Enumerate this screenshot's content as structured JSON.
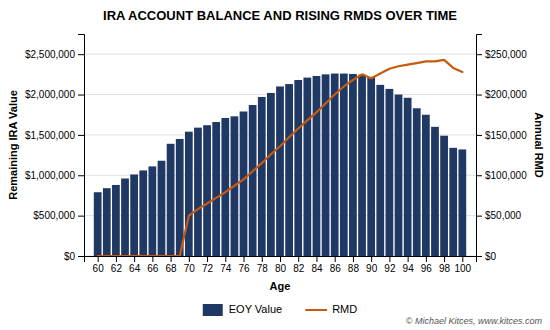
{
  "chart_data": {
    "type": "bar",
    "title": "IRA ACCOUNT BALANCE AND RISING RMDS OVER TIME",
    "x_label": "Age",
    "y_label": "Remaining IRA Value",
    "y2_label": "Annual RMD",
    "x": [
      60,
      61,
      62,
      63,
      64,
      65,
      66,
      67,
      68,
      69,
      70,
      71,
      72,
      73,
      74,
      75,
      76,
      77,
      78,
      79,
      80,
      81,
      82,
      83,
      84,
      85,
      86,
      87,
      88,
      89,
      90,
      91,
      92,
      93,
      94,
      95,
      96,
      97,
      98,
      99,
      100
    ],
    "series": [
      {
        "name": "EOY Value",
        "type": "bar",
        "color": "#1f3864",
        "values": [
          790000,
          840000,
          880000,
          960000,
          1010000,
          1060000,
          1110000,
          1180000,
          1390000,
          1450000,
          1540000,
          1590000,
          1620000,
          1660000,
          1710000,
          1730000,
          1790000,
          1870000,
          1970000,
          2020000,
          2100000,
          2130000,
          2180000,
          2210000,
          2230000,
          2250000,
          2260000,
          2260000,
          2255000,
          2245000,
          2220000,
          2120000,
          2070000,
          2000000,
          1960000,
          1830000,
          1750000,
          1600000,
          1490000,
          1340000,
          1320000
        ]
      },
      {
        "name": "RMD",
        "type": "line",
        "color": "#c55a11",
        "axis": "y2",
        "values": [
          0,
          0,
          0,
          0,
          0,
          0,
          0,
          0,
          0,
          0,
          50000,
          58000,
          65000,
          72000,
          79000,
          87000,
          95000,
          105000,
          115000,
          126000,
          136000,
          147000,
          158000,
          168000,
          178000,
          189000,
          200000,
          210000,
          218000,
          225000,
          220000,
          226000,
          232000,
          235000,
          237000,
          239000,
          241000,
          241000,
          243000,
          233000,
          228000
        ]
      }
    ],
    "xlim": [
      58.5,
      101.5
    ],
    "xticks": [
      60,
      62,
      64,
      66,
      68,
      70,
      72,
      74,
      76,
      78,
      80,
      82,
      84,
      86,
      88,
      90,
      92,
      94,
      96,
      98,
      100
    ],
    "ylim": [
      0,
      2750000
    ],
    "yticks": [
      {
        "value": 0,
        "label": "$0"
      },
      {
        "value": 500000,
        "label": "$500,000"
      },
      {
        "value": 1000000,
        "label": "$1,000,000"
      },
      {
        "value": 1500000,
        "label": "$1,500,000"
      },
      {
        "value": 2000000,
        "label": "$2,000,000"
      },
      {
        "value": 2500000,
        "label": "$2,500,000"
      }
    ],
    "y2lim": [
      0,
      275000
    ],
    "y2ticks": [
      {
        "value": 0,
        "label": "$0"
      },
      {
        "value": 50000,
        "label": "$50,000"
      },
      {
        "value": 100000,
        "label": "$100,000"
      },
      {
        "value": 150000,
        "label": "$150,000"
      },
      {
        "value": 200000,
        "label": "$200,000"
      },
      {
        "value": 250000,
        "label": "$250,000"
      }
    ],
    "grid": true,
    "legend": "bottom",
    "annotations": [
      "© Michael Kitces, www.kitces.com"
    ]
  }
}
